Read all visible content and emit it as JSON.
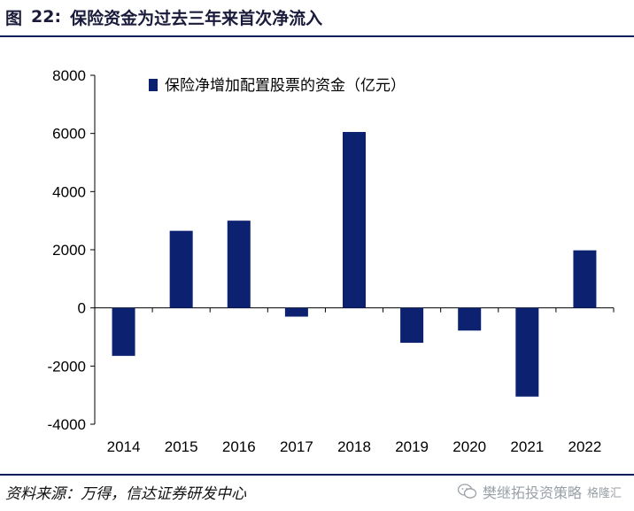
{
  "figure": {
    "label": "图",
    "number": "22:",
    "title": "保险资金为过去三年来首次净流入"
  },
  "source": "资料来源：万得，信达证券研发中心",
  "watermark": {
    "text": "樊继拓投资策略",
    "sub": "格隆汇"
  },
  "colors": {
    "bar": "#0c2271",
    "rule": "#0a1f5c",
    "axis": "#000000"
  },
  "chart_data": {
    "type": "bar",
    "categories": [
      "2014",
      "2015",
      "2016",
      "2017",
      "2018",
      "2019",
      "2020",
      "2021",
      "2022"
    ],
    "series": [
      {
        "name": "保险净增加配置股票的资金（亿元）",
        "values": [
          -1650,
          2650,
          3000,
          -300,
          6050,
          -1200,
          -780,
          -3050,
          1980
        ]
      }
    ],
    "ylim": [
      -4000,
      8000
    ],
    "yticks": [
      "8000",
      "6000",
      "4000",
      "2000",
      "0",
      "-2000",
      "-4000"
    ],
    "ytick_values": [
      8000,
      6000,
      4000,
      2000,
      0,
      -2000,
      -4000
    ],
    "grid": false,
    "legend_position": "top-left"
  }
}
